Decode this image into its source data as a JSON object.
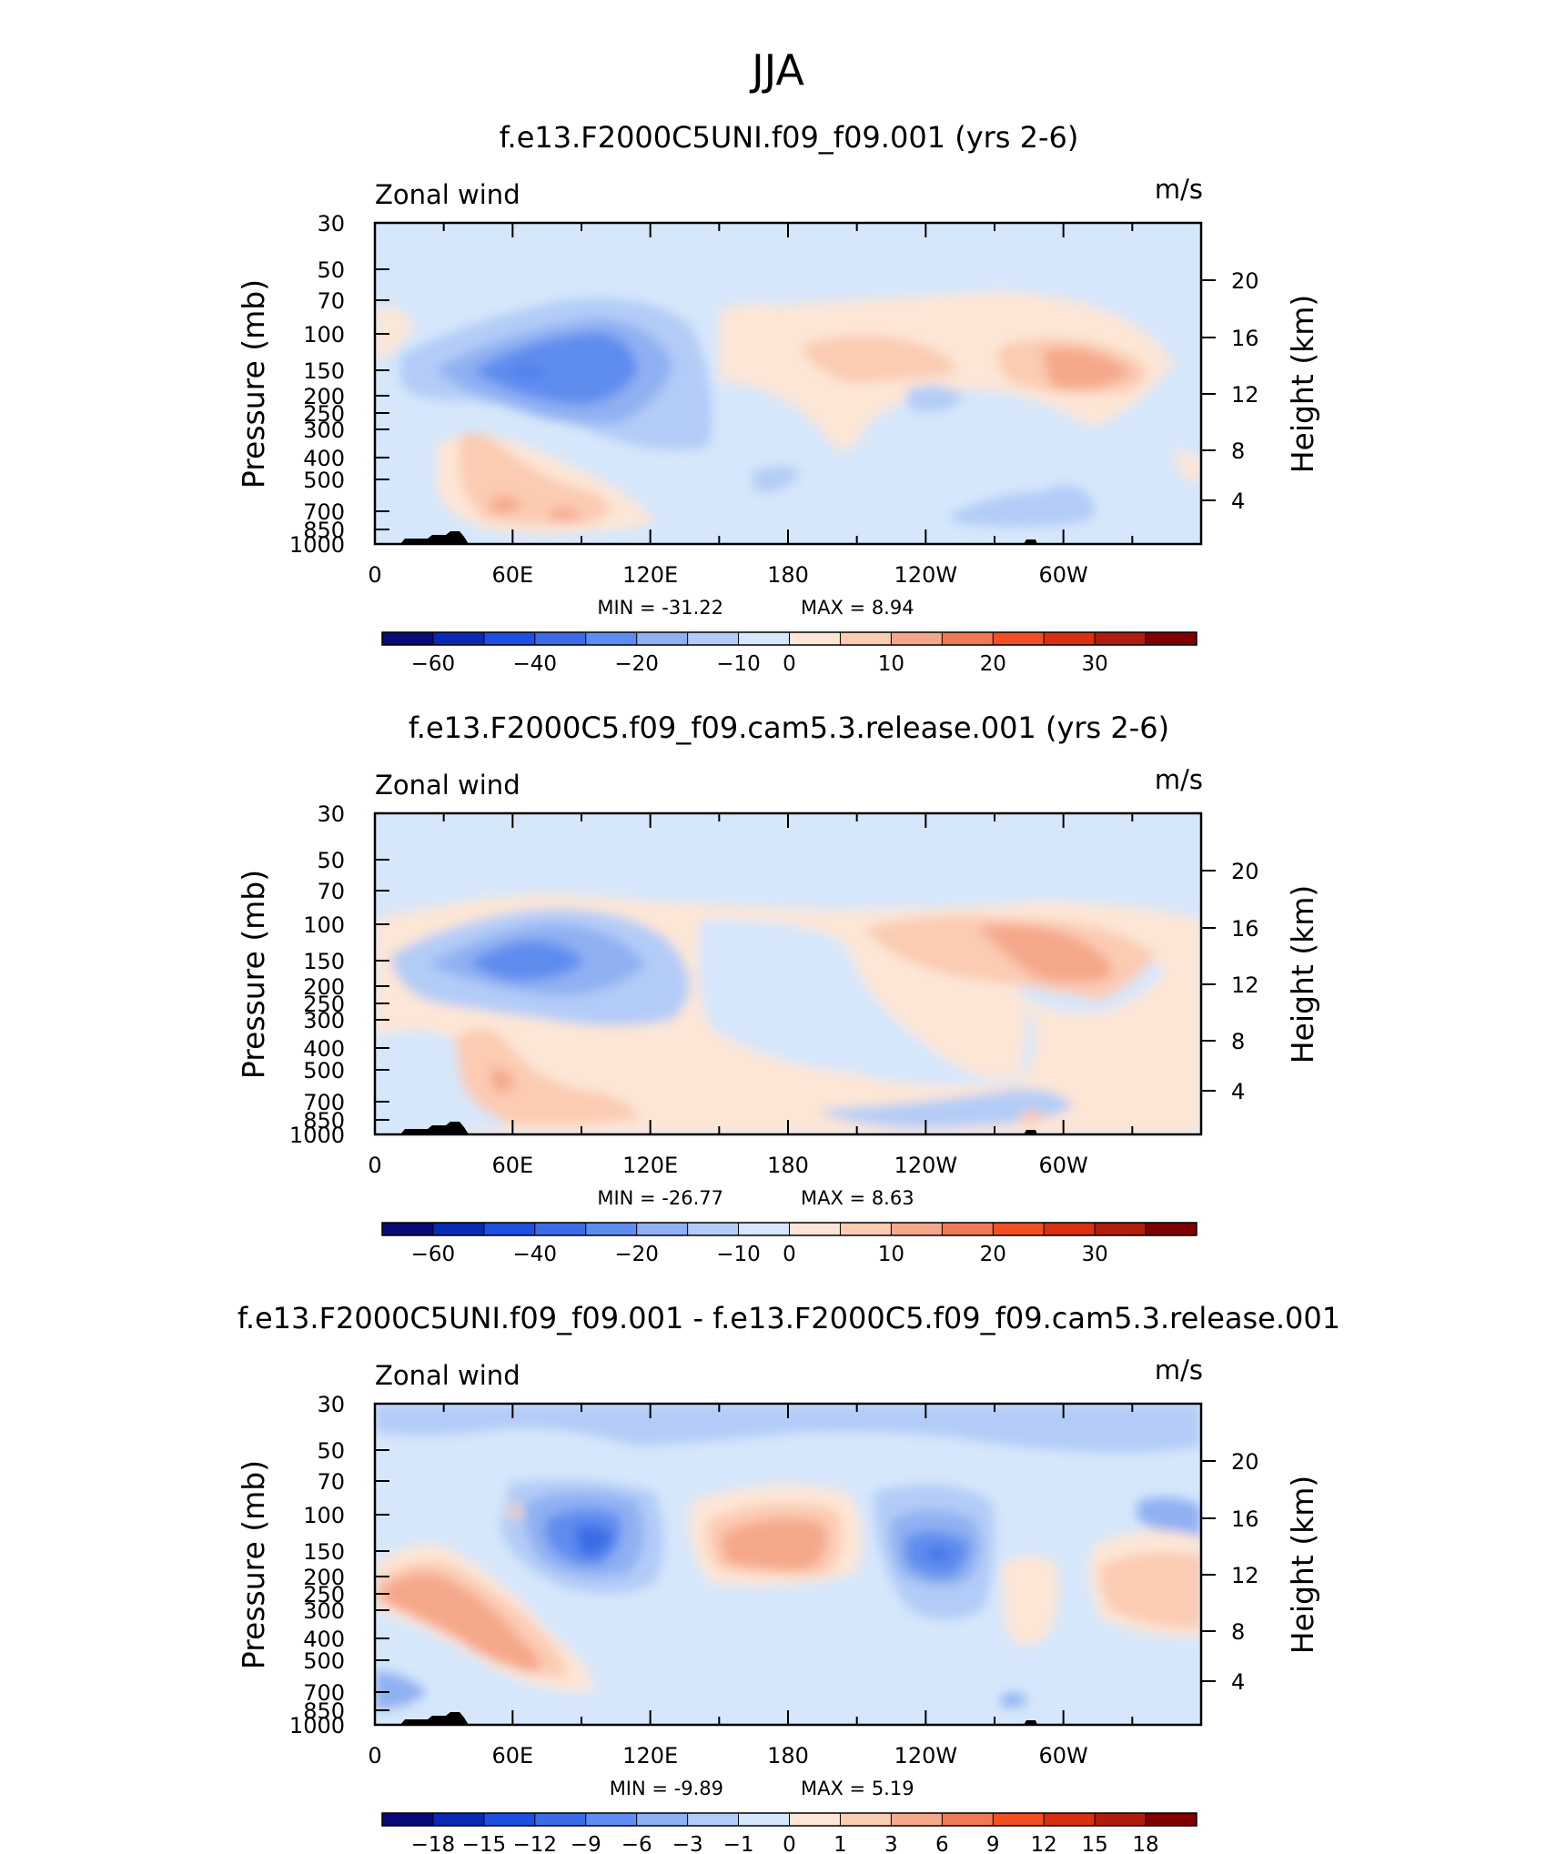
{
  "page_title": "JJA",
  "chart_data": [
    {
      "type": "heatmap",
      "title": "f.e13.F2000C5UNI.f09_f09.001 (yrs 2-6)",
      "left_label": "Zonal wind",
      "right_label": "m/s",
      "ylabel": "Pressure (mb)",
      "ylabel_right": "Height (km)",
      "x_ticks": [
        "0",
        "60E",
        "120E",
        "180",
        "120W",
        "60W"
      ],
      "y_ticks": [
        "30",
        "50",
        "70",
        "100",
        "150",
        "200",
        "250",
        "300",
        "400",
        "500",
        "700",
        "850",
        "1000"
      ],
      "y_ticks_right": [
        "20",
        "16",
        "12",
        "8",
        "4"
      ],
      "min_text": "MIN = -31.22",
      "max_text": "MAX = 8.94",
      "colorbar_labels": [
        "-60",
        "-40",
        "-20",
        "-10",
        "0",
        "10",
        "20",
        "30"
      ]
    },
    {
      "type": "heatmap",
      "title": "f.e13.F2000C5.f09_f09.cam5.3.release.001 (yrs 2-6)",
      "left_label": "Zonal wind",
      "right_label": "m/s",
      "ylabel": "Pressure (mb)",
      "ylabel_right": "Height (km)",
      "x_ticks": [
        "0",
        "60E",
        "120E",
        "180",
        "120W",
        "60W"
      ],
      "y_ticks": [
        "30",
        "50",
        "70",
        "100",
        "150",
        "200",
        "250",
        "300",
        "400",
        "500",
        "700",
        "850",
        "1000"
      ],
      "y_ticks_right": [
        "20",
        "16",
        "12",
        "8",
        "4"
      ],
      "min_text": "MIN = -26.77",
      "max_text": "MAX = 8.63",
      "colorbar_labels": [
        "-60",
        "-40",
        "-20",
        "-10",
        "0",
        "10",
        "20",
        "30"
      ]
    },
    {
      "type": "heatmap",
      "title": "f.e13.F2000C5UNI.f09_f09.001 - f.e13.F2000C5.f09_f09.cam5.3.release.001",
      "left_label": "Zonal wind",
      "right_label": "m/s",
      "ylabel": "Pressure (mb)",
      "ylabel_right": "Height (km)",
      "x_ticks": [
        "0",
        "60E",
        "120E",
        "180",
        "120W",
        "60W"
      ],
      "y_ticks": [
        "30",
        "50",
        "70",
        "100",
        "150",
        "200",
        "250",
        "300",
        "400",
        "500",
        "700",
        "850",
        "1000"
      ],
      "y_ticks_right": [
        "20",
        "16",
        "12",
        "8",
        "4"
      ],
      "min_text": "MIN = -9.89",
      "max_text": "MAX = 5.19",
      "colorbar_labels": [
        "-18",
        "-15",
        "-12",
        "-9",
        "-6",
        "-3",
        "-1",
        "0",
        "1",
        "3",
        "6",
        "9",
        "12",
        "15",
        "18"
      ]
    }
  ],
  "colors": {
    "blue_light": "#d6e7fb",
    "blue_2": "#b3ccf7",
    "blue_3": "#8fb0f2",
    "blue_4": "#5f8cef",
    "blue_5": "#3b6ce6",
    "orange_light": "#fde6d6",
    "orange_2": "#fbcbb2",
    "orange_3": "#f5a78a",
    "colorbar": [
      "#0a0a78",
      "#0a2ab4",
      "#1f4fe0",
      "#3b6ce6",
      "#5f8cef",
      "#8fb0f2",
      "#b3ccf7",
      "#d6e7fb",
      "#fde6d6",
      "#fbcbb2",
      "#f5a78a",
      "#f07a55",
      "#f24f25",
      "#d9300f",
      "#b01d0a",
      "#800000"
    ]
  }
}
